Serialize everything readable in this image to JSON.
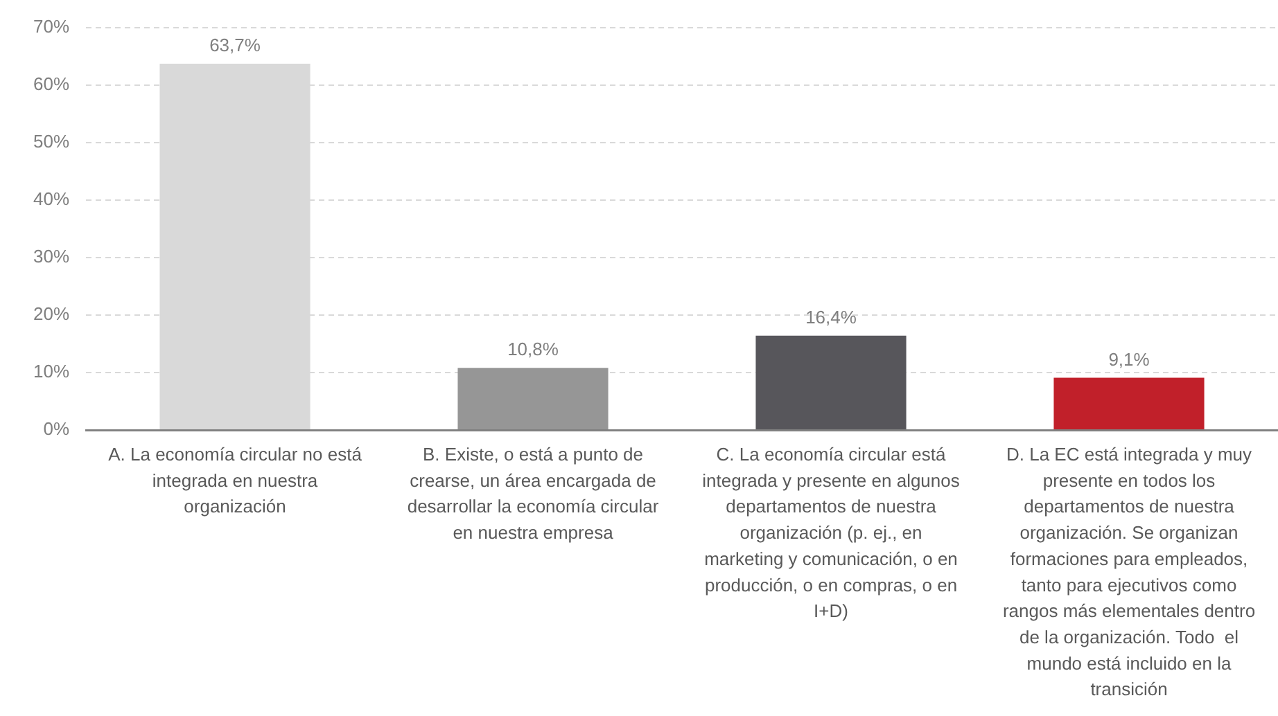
{
  "chart_data": {
    "type": "bar",
    "categories": [
      "A. La economía circular no está integrada en nuestra organización",
      "B. Existe, o está a punto de crearse, un área encargada de desarrollar la economía circular en nuestra empresa",
      "C. La economía circular está integrada y presente en algunos departamentos de nuestra organización (p. ej., en marketing y comunicación, o en producción, o en compras, o en I+D)",
      "D. La EC está integrada y muy presente en todos los departamentos de nuestra organización. Se organizan formaciones para empleados, tanto para ejecutivos como rangos más elementales dentro de la organización. Todo  el mundo está incluido en la transición"
    ],
    "values": [
      63.7,
      10.8,
      16.4,
      9.1
    ],
    "colors": [
      "#d9d9d9",
      "#969696",
      "#57565b",
      "#c1202a"
    ],
    "value_labels": [
      "63,7%",
      "10,8%",
      "16,4%",
      "9,1%"
    ],
    "ylim": [
      0,
      70
    ],
    "yticks": [
      {
        "value": 0,
        "label": "0%"
      },
      {
        "value": 10,
        "label": "10%"
      },
      {
        "value": 20,
        "label": "20%"
      },
      {
        "value": 30,
        "label": "30%"
      },
      {
        "value": 40,
        "label": "40%"
      },
      {
        "value": 50,
        "label": "50%"
      },
      {
        "value": 60,
        "label": "60%"
      },
      {
        "value": 70,
        "label": "70%"
      }
    ],
    "grid": "y"
  }
}
